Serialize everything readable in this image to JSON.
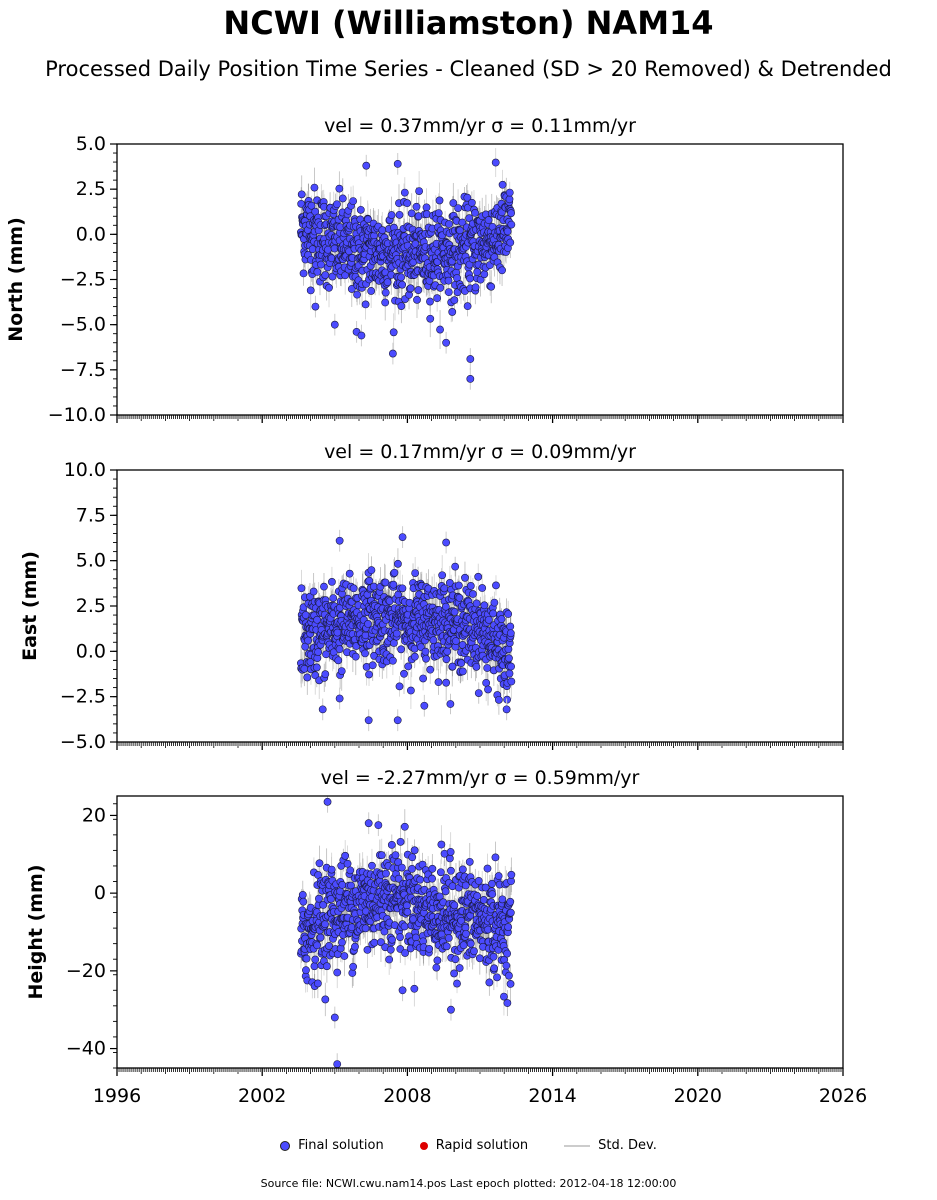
{
  "title": "NCWI (Williamston) NAM14",
  "subtitle": "Processed Daily Position Time Series - Cleaned (SD > 20 Removed) & Detrended",
  "legend": {
    "final": "Final solution",
    "rapid": "Rapid solution",
    "stddev": "Std. Dev."
  },
  "source_note": "Source file: NCWI.cwu.nam14.pos  Last epoch plotted: 2012-04-18 12:00:00",
  "colors": {
    "final_marker": "#4b4bff",
    "rapid_marker": "#dd0000",
    "stddev_line": "#cccccc",
    "dense_band": "#666666"
  },
  "chart_data": [
    {
      "type": "scatter",
      "panel": "north",
      "title": "vel = 0.37mm/yr   σ = 0.11mm/yr",
      "ylabel": "North (mm)",
      "ylim": [
        -10,
        5
      ],
      "yticks": [
        -10,
        -7.5,
        -5,
        -2.5,
        0,
        2.5,
        5
      ],
      "ytick_labels": [
        "−10.0",
        "−7.5",
        "−5.0",
        "−2.5",
        "0.0",
        "2.5",
        "5.0"
      ],
      "xlim": [
        1996,
        2026
      ],
      "data_span": [
        2003.6,
        2012.3
      ],
      "trend_knots": [
        [
          2003.6,
          0.5
        ],
        [
          2004.6,
          -0.3
        ],
        [
          2006.0,
          -1.0
        ],
        [
          2008.0,
          -1.1
        ],
        [
          2010.0,
          -1.0
        ],
        [
          2011.3,
          -0.4
        ],
        [
          2012.3,
          0.4
        ]
      ],
      "scatter_sd": 1.25,
      "outliers": [
        [
          2006.3,
          3.8
        ],
        [
          2007.6,
          3.9
        ],
        [
          2005.9,
          -5.4
        ],
        [
          2006.1,
          -5.6
        ],
        [
          2007.4,
          -6.6
        ],
        [
          2009.6,
          -6.0
        ],
        [
          2010.6,
          -6.9
        ],
        [
          2010.6,
          -8.0
        ],
        [
          2004.2,
          -4.0
        ],
        [
          2005.0,
          -5.0
        ]
      ]
    },
    {
      "type": "scatter",
      "panel": "east",
      "title": "vel = 0.17mm/yr   σ = 0.09mm/yr",
      "ylabel": "East (mm)",
      "ylim": [
        -5,
        10
      ],
      "yticks": [
        -5,
        -2.5,
        0,
        2.5,
        5,
        7.5,
        10
      ],
      "ytick_labels": [
        "−5.0",
        "−2.5",
        "0.0",
        "2.5",
        "5.0",
        "7.5",
        "10.0"
      ],
      "xlim": [
        1996,
        2026
      ],
      "data_span": [
        2003.6,
        2012.3
      ],
      "trend_knots": [
        [
          2003.6,
          0.8
        ],
        [
          2005.0,
          1.3
        ],
        [
          2006.5,
          1.9
        ],
        [
          2008.0,
          1.6
        ],
        [
          2009.5,
          1.7
        ],
        [
          2011.0,
          1.2
        ],
        [
          2012.3,
          -0.5
        ]
      ],
      "scatter_sd": 1.2,
      "outliers": [
        [
          2005.2,
          6.1
        ],
        [
          2007.8,
          6.3
        ],
        [
          2009.6,
          6.0
        ],
        [
          2004.5,
          -3.2
        ],
        [
          2006.4,
          -3.8
        ],
        [
          2007.6,
          -3.8
        ],
        [
          2008.7,
          -3.0
        ],
        [
          2012.1,
          -3.2
        ],
        [
          2005.2,
          -2.6
        ]
      ]
    },
    {
      "type": "scatter",
      "panel": "height",
      "title": "vel = -2.27mm/yr   σ = 0.59mm/yr",
      "ylabel": "Height (mm)",
      "ylim": [
        -45,
        25
      ],
      "yticks": [
        -40,
        -20,
        0,
        20
      ],
      "ytick_labels": [
        "−40",
        "−20",
        "0",
        "20"
      ],
      "xlim": [
        1996,
        2026
      ],
      "data_span": [
        2003.6,
        2012.3
      ],
      "trend_knots": [
        [
          2003.6,
          -12
        ],
        [
          2004.5,
          -6
        ],
        [
          2006.0,
          -3
        ],
        [
          2007.5,
          0
        ],
        [
          2009.0,
          -5
        ],
        [
          2010.5,
          -6
        ],
        [
          2012.3,
          -9
        ]
      ],
      "scatter_sd": 6.5,
      "outliers": [
        [
          2004.7,
          23.5
        ],
        [
          2006.4,
          18
        ],
        [
          2006.8,
          17.5
        ],
        [
          2005.0,
          -32
        ],
        [
          2005.1,
          -44
        ],
        [
          2007.8,
          -25
        ],
        [
          2009.8,
          -30
        ]
      ]
    }
  ],
  "x_axis": {
    "tick_years": [
      1996,
      2002,
      2008,
      2014,
      2020,
      2026
    ],
    "tick_labels": [
      "1996",
      "2002",
      "2008",
      "2014",
      "2020",
      "2026"
    ]
  }
}
